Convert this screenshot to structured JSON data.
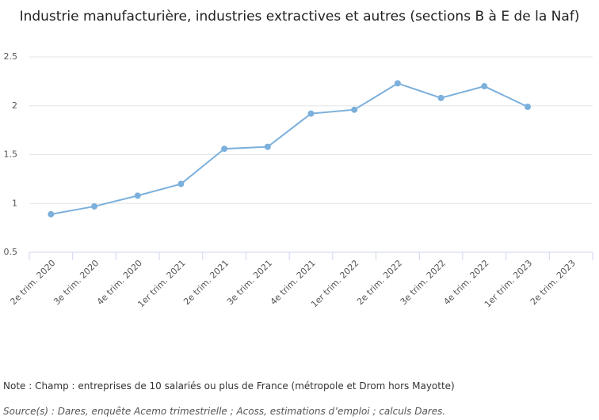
{
  "chart_data": {
    "type": "line",
    "title": "Industrie manufacturière, industries extractives et autres (sections B à E de la Naf)",
    "categories": [
      "2e trim. 2020",
      "3e trim. 2020",
      "4e trim. 2020",
      "1er trim. 2021",
      "2e trim. 2021",
      "3e trim. 2021",
      "4e trim. 2021",
      "1er trim. 2022",
      "2e trim. 2022",
      "3e trim. 2022",
      "4e trim. 2022",
      "1er trim. 2023",
      "2e trim. 2023"
    ],
    "values": [
      0.89,
      0.97,
      1.08,
      1.2,
      1.56,
      1.58,
      1.92,
      1.96,
      2.23,
      2.08,
      2.2,
      1.99,
      null
    ],
    "color": "#7cb0dc",
    "ylim": [
      0.5,
      2.5
    ],
    "yticks": [
      0.5,
      1,
      1.5,
      2,
      2.5
    ],
    "grid": true
  },
  "note": "Note : Champ : entreprises de 10 salariés ou plus de France (métropole et Drom hors Mayotte)",
  "source": "Source(s) : Dares, enquête Acemo trimestrielle ; Acoss, estimations d’emploi ; calculs Dares."
}
